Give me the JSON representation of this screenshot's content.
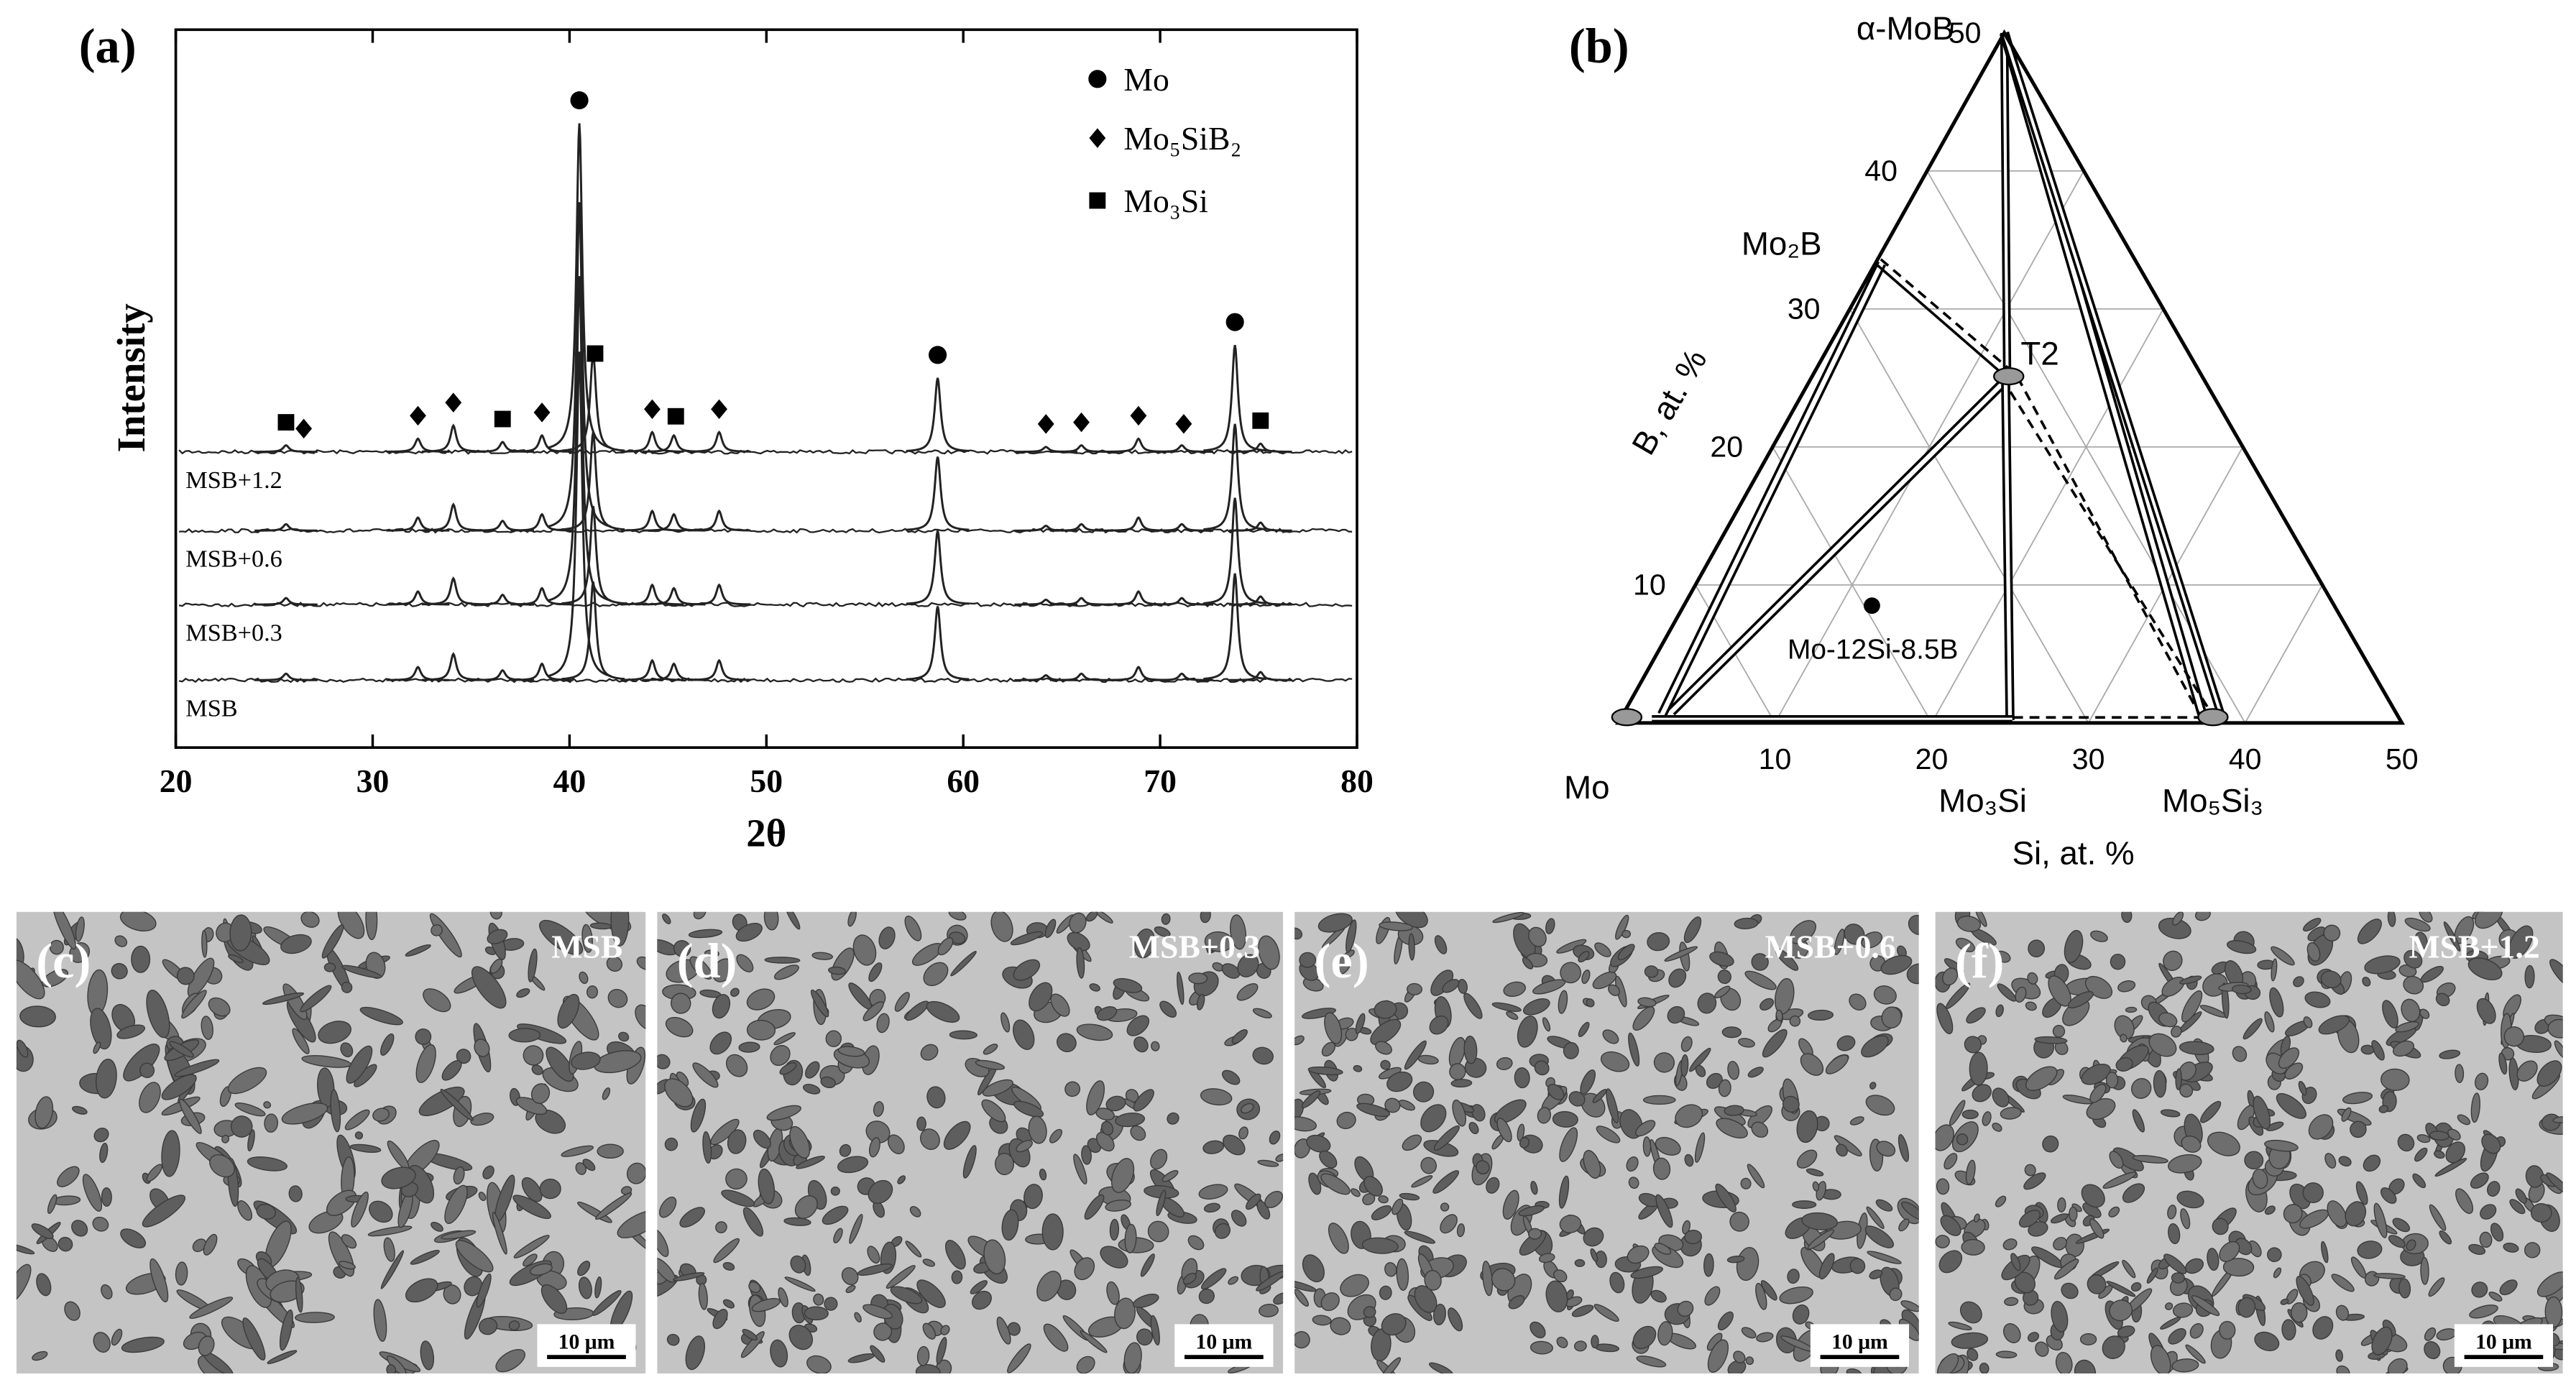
{
  "chart_data": [
    {
      "type": "xrd",
      "panel_label": "(a)",
      "xlabel": "2θ",
      "ylabel": "Intensity",
      "xlim": [
        20,
        80
      ],
      "xticks": [
        20,
        30,
        40,
        50,
        60,
        70,
        80
      ],
      "legend": [
        "Mo",
        "Mo₅SiB₂",
        "Mo₃Si"
      ],
      "traces": [
        "MSB+1.2",
        "MSB+0.6",
        "MSB+0.3",
        "MSB"
      ],
      "peak_positions": [
        25.6,
        32.3,
        34.1,
        36.6,
        38.6,
        40.5,
        41.2,
        44.2,
        45.3,
        47.6,
        58.7,
        64.2,
        66.0,
        68.9,
        71.1,
        73.8,
        75.1
      ],
      "peak_heights": [
        4,
        8,
        16,
        6,
        10,
        200,
        60,
        12,
        10,
        12,
        45,
        3,
        4,
        8,
        4,
        65,
        5
      ],
      "phase_markers": {
        "phase": [
          2,
          1,
          1,
          1,
          2,
          1,
          0,
          2,
          1,
          2,
          1,
          0,
          1,
          1,
          1,
          1,
          0,
          2
        ],
        "x": [
          25.6,
          26.5,
          32.3,
          34.1,
          36.6,
          38.6,
          40.5,
          41.3,
          44.2,
          45.4,
          47.6,
          58.7,
          64.2,
          66.0,
          68.9,
          71.2,
          73.8,
          75.1
        ]
      }
    },
    {
      "type": "ternary",
      "panel_label": "(b)",
      "xlabel": "Si, at. %",
      "ylabel": "B, at. %",
      "silim": [
        0,
        50
      ],
      "siticks": [
        10,
        20,
        30,
        40,
        50
      ],
      "blim": [
        0,
        50
      ],
      "bticks": [
        10,
        20,
        30,
        40,
        50
      ],
      "phases": [
        "α-MoB",
        "Mo₂B",
        "T2",
        "Mo",
        "Mo₃Si",
        "Mo₅Si₃"
      ],
      "sample": {
        "label": "Mo-12Si-8.5B",
        "si": 12,
        "b": 8.5
      }
    }
  ],
  "micrographs": [
    {
      "label": "(c)",
      "sample": "MSB",
      "scale": "10 μm"
    },
    {
      "label": "(d)",
      "sample": "MSB+0.3",
      "scale": "10 μm"
    },
    {
      "label": "(e)",
      "sample": "MSB+0.6",
      "scale": "10 μm"
    },
    {
      "label": "(f)",
      "sample": "MSB+1.2",
      "scale": "10 μm"
    }
  ]
}
